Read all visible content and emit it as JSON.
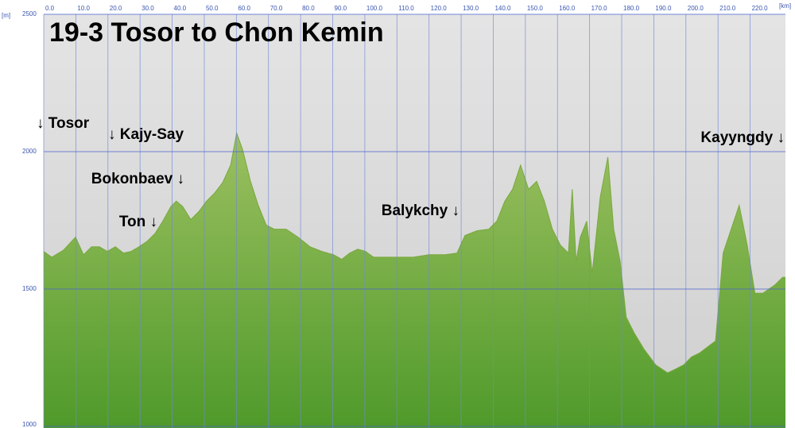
{
  "chart_data": {
    "type": "area",
    "title": "19-3 Tosor to Chon Kemin",
    "x_unit": "[km]",
    "y_unit": "[m]",
    "annotations": [
      "↓ Tosor",
      "↓ Kajy-Say",
      "Bokonbaev ↓",
      "Ton ↓",
      "Balykchy ↓",
      "Kayyngdy ↓"
    ],
    "xlim": [
      0,
      231
    ],
    "ylim": [
      1000,
      2500
    ],
    "xticks": [
      {
        "value": 0,
        "label": "0.0"
      },
      {
        "value": 10,
        "label": "10.0"
      },
      {
        "value": 20,
        "label": "20.0"
      },
      {
        "value": 30,
        "label": "30.0"
      },
      {
        "value": 40,
        "label": "40.0"
      },
      {
        "value": 50,
        "label": "50.0"
      },
      {
        "value": 60,
        "label": "60.0"
      },
      {
        "value": 70,
        "label": "70.0"
      },
      {
        "value": 80,
        "label": "80.0"
      },
      {
        "value": 90,
        "label": "90.0"
      },
      {
        "value": 100,
        "label": "100.0"
      },
      {
        "value": 110,
        "label": "110.0"
      },
      {
        "value": 120,
        "label": "120.0"
      },
      {
        "value": 130,
        "label": "130.0"
      },
      {
        "value": 140,
        "label": "140.0"
      },
      {
        "value": 150,
        "label": "150.0"
      },
      {
        "value": 160,
        "label": "160.0"
      },
      {
        "value": 170,
        "label": "170.0"
      },
      {
        "value": 180,
        "label": "180.0"
      },
      {
        "value": 190,
        "label": "190.0"
      },
      {
        "value": 200,
        "label": "200.0"
      },
      {
        "value": 210,
        "label": "210.0"
      },
      {
        "value": 220,
        "label": "220.0"
      }
    ],
    "yticks": [
      1000,
      1500,
      2000,
      2500
    ],
    "grid": true,
    "color": "#7aa83e",
    "x": [
      0,
      2.5,
      6.2,
      9.9,
      12.4,
      14.9,
      17.3,
      19.8,
      22.3,
      24.8,
      27.2,
      29.7,
      32.2,
      34.7,
      37.1,
      39.6,
      41.3,
      43.3,
      45.8,
      48.3,
      50.7,
      53.2,
      55.7,
      58.2,
      60.1,
      61.9,
      64.4,
      66.8,
      69.3,
      71.8,
      75.5,
      79.2,
      82.9,
      86.6,
      90.3,
      92.8,
      95.3,
      97.8,
      100.2,
      102.7,
      105.2,
      110.1,
      115.1,
      120.0,
      125.0,
      128.7,
      131.2,
      134.9,
      138.6,
      141.1,
      143.6,
      146.0,
      148.5,
      151.0,
      153.5,
      155.9,
      158.4,
      160.9,
      163.4,
      164.6,
      165.8,
      167.1,
      169.1,
      170.8,
      173.3,
      175.7,
      177.5,
      179.5,
      181.4,
      183.9,
      186.9,
      190.6,
      194.3,
      196.8,
      199.3,
      201.7,
      204.2,
      209.2,
      211.6,
      214.1,
      216.6,
      219.1,
      221.5,
      224.0,
      227.7,
      230.2
    ],
    "values": [
      1637,
      1616,
      1642,
      1689,
      1625,
      1654,
      1654,
      1637,
      1654,
      1631,
      1637,
      1654,
      1674,
      1703,
      1747,
      1800,
      1820,
      1800,
      1753,
      1782,
      1820,
      1849,
      1887,
      1951,
      2067,
      2009,
      1892,
      1805,
      1733,
      1718,
      1718,
      1689,
      1654,
      1637,
      1625,
      1608,
      1631,
      1645,
      1637,
      1616,
      1616,
      1616,
      1616,
      1625,
      1625,
      1631,
      1695,
      1712,
      1718,
      1747,
      1820,
      1863,
      1951,
      1863,
      1892,
      1820,
      1718,
      1660,
      1631,
      1863,
      1602,
      1689,
      1747,
      1558,
      1834,
      1980,
      1718,
      1602,
      1398,
      1340,
      1282,
      1224,
      1195,
      1209,
      1224,
      1253,
      1267,
      1311,
      1631,
      1718,
      1805,
      1660,
      1485,
      1485,
      1515,
      1544
    ]
  }
}
